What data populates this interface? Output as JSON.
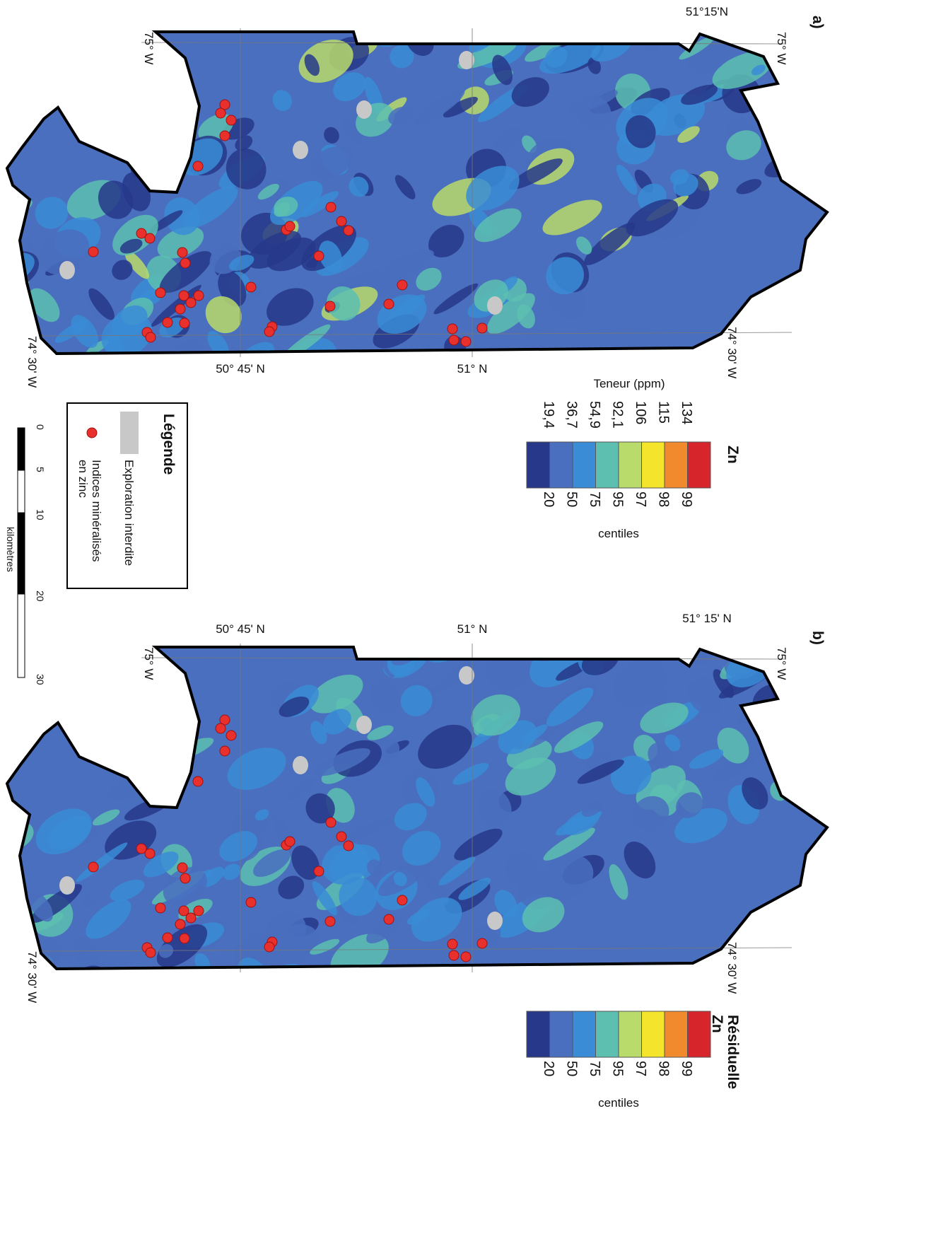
{
  "panels": [
    {
      "label": "a)",
      "lat_labels": [
        "50° 45' N",
        "51° N",
        "51°15'N"
      ],
      "lon_labels": [
        "75° W",
        "74° 30' W",
        "75° W",
        "74° 30' W"
      ],
      "scale_title": [
        "Zn"
      ],
      "unit_label": "Teneur (ppm)",
      "ppm": [
        "19,4",
        "36,7",
        "54,9",
        "92,1",
        "106",
        "115",
        "134"
      ],
      "centiles": [
        "20",
        "50",
        "75",
        "95",
        "97",
        "98",
        "99"
      ],
      "centiles_label": "centiles"
    },
    {
      "label": "b)",
      "lat_labels": [
        "50° 45' N",
        "51° N",
        "51° 15' N"
      ],
      "lon_labels": [
        "75° W",
        "74° 30' W",
        "75° W",
        "74° 30' W"
      ],
      "scale_title": [
        "Résiduelle",
        "Zn"
      ],
      "centiles": [
        "20",
        "50",
        "75",
        "95",
        "97",
        "98",
        "99"
      ],
      "centiles_label": "centiles"
    }
  ],
  "colors": [
    "#27388a",
    "#4a6fbe",
    "#3a8cd6",
    "#5cbfb0",
    "#b9db6b",
    "#f4e42c",
    "#f08a2c",
    "#d6262b"
  ],
  "legend": {
    "title": "Légende",
    "items": [
      "Exploration interdite",
      "Indices minéralisés",
      "en zinc"
    ]
  },
  "scalebar": {
    "ticks": [
      "0",
      "5",
      "10",
      "20",
      "30"
    ],
    "unit": "kilomètres"
  }
}
